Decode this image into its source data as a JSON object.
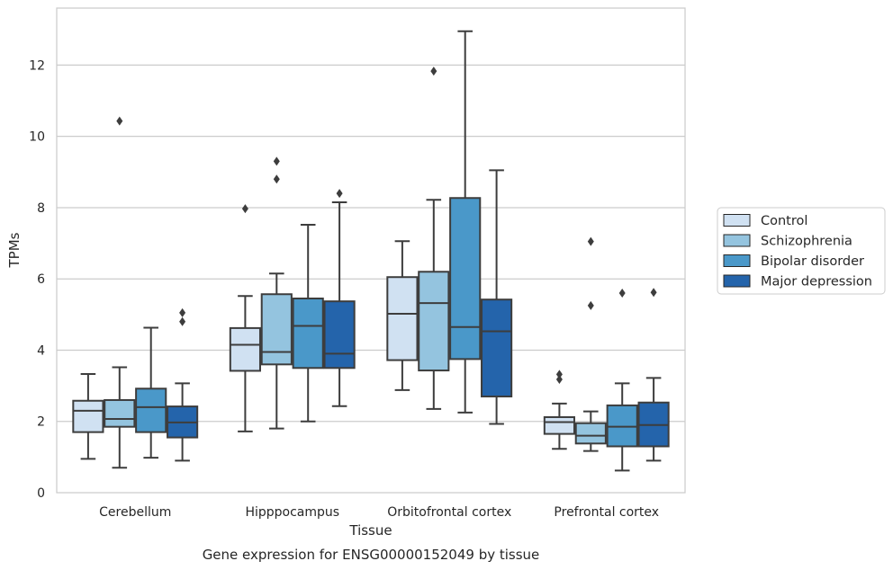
{
  "chart_data": {
    "type": "box",
    "title": "",
    "caption": "Gene expression for ENSG00000152049 by tissue",
    "xlabel": "Tissue",
    "ylabel": "TPMs",
    "ylim": [
      0,
      13.6
    ],
    "yticks": [
      0,
      2,
      4,
      6,
      8,
      10,
      12
    ],
    "grid": "horizontal",
    "legend_position": "right",
    "categories": [
      "Cerebellum",
      "Hipppocampus",
      "Orbitofrontal cortex",
      "Prefrontal cortex"
    ],
    "series": [
      {
        "name": "Control",
        "color": "#d0e1f2",
        "boxes": [
          {
            "whislo": 0.95,
            "q1": 1.7,
            "med": 2.3,
            "q3": 2.58,
            "whishi": 3.33,
            "fliers": []
          },
          {
            "whislo": 1.72,
            "q1": 3.42,
            "med": 4.15,
            "q3": 4.62,
            "whishi": 5.52,
            "fliers": [
              7.97
            ]
          },
          {
            "whislo": 2.88,
            "q1": 3.72,
            "med": 5.02,
            "q3": 6.05,
            "whishi": 7.06,
            "fliers": []
          },
          {
            "whislo": 1.23,
            "q1": 1.65,
            "med": 1.98,
            "q3": 2.12,
            "whishi": 2.5,
            "fliers": [
              3.18,
              3.32
            ]
          }
        ]
      },
      {
        "name": "Schizophrenia",
        "color": "#94c4df",
        "boxes": [
          {
            "whislo": 0.7,
            "q1": 1.85,
            "med": 2.07,
            "q3": 2.6,
            "whishi": 3.52,
            "fliers": [
              10.43
            ]
          },
          {
            "whislo": 1.8,
            "q1": 3.6,
            "med": 3.95,
            "q3": 5.57,
            "whishi": 6.15,
            "fliers": [
              8.8,
              9.3
            ]
          },
          {
            "whislo": 2.35,
            "q1": 3.43,
            "med": 5.32,
            "q3": 6.2,
            "whishi": 8.22,
            "fliers": [
              11.83
            ]
          },
          {
            "whislo": 1.17,
            "q1": 1.38,
            "med": 1.6,
            "q3": 1.95,
            "whishi": 2.28,
            "fliers": [
              5.25,
              7.05
            ]
          }
        ]
      },
      {
        "name": "Bipolar disorder",
        "color": "#4a98c9",
        "boxes": [
          {
            "whislo": 0.98,
            "q1": 1.7,
            "med": 2.4,
            "q3": 2.92,
            "whishi": 4.63,
            "fliers": []
          },
          {
            "whislo": 2.0,
            "q1": 3.5,
            "med": 4.68,
            "q3": 5.45,
            "whishi": 7.52,
            "fliers": []
          },
          {
            "whislo": 2.25,
            "q1": 3.75,
            "med": 4.65,
            "q3": 8.27,
            "whishi": 12.95,
            "fliers": []
          },
          {
            "whislo": 0.62,
            "q1": 1.3,
            "med": 1.85,
            "q3": 2.45,
            "whishi": 3.07,
            "fliers": [
              5.6
            ]
          }
        ]
      },
      {
        "name": "Major depression",
        "color": "#2464ab",
        "boxes": [
          {
            "whislo": 0.9,
            "q1": 1.55,
            "med": 1.97,
            "q3": 2.42,
            "whishi": 3.07,
            "fliers": [
              4.8,
              5.05
            ]
          },
          {
            "whislo": 2.43,
            "q1": 3.5,
            "med": 3.9,
            "q3": 5.37,
            "whishi": 8.15,
            "fliers": [
              8.4
            ]
          },
          {
            "whislo": 1.93,
            "q1": 2.7,
            "med": 4.53,
            "q3": 5.42,
            "whishi": 9.05,
            "fliers": []
          },
          {
            "whislo": 0.9,
            "q1": 1.3,
            "med": 1.9,
            "q3": 2.53,
            "whishi": 3.22,
            "fliers": [
              5.62
            ]
          }
        ]
      }
    ]
  }
}
